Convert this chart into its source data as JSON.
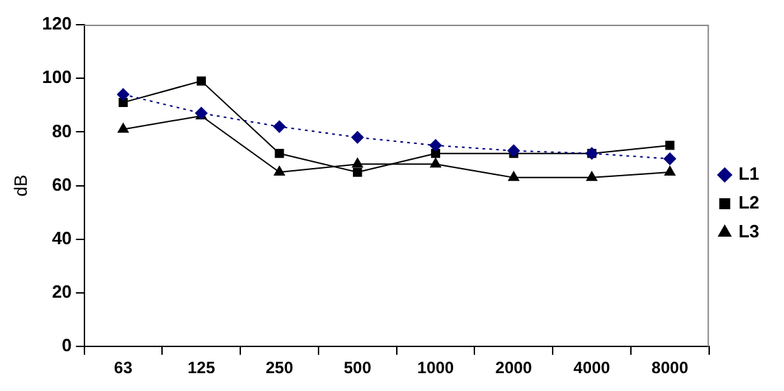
{
  "chart_data": {
    "type": "line",
    "ylabel": "dB",
    "categories": [
      "63",
      "125",
      "250",
      "500",
      "1000",
      "2000",
      "4000",
      "8000"
    ],
    "series": [
      {
        "name": "L1",
        "color": "#000080",
        "marker": "diamond",
        "line_style": "dotted",
        "values": [
          94,
          87,
          82,
          78,
          75,
          73,
          72,
          70
        ]
      },
      {
        "name": "L2",
        "color": "#000000",
        "marker": "square",
        "line_style": "solid",
        "values": [
          91,
          99,
          72,
          65,
          72,
          72,
          72,
          75
        ]
      },
      {
        "name": "L3",
        "color": "#000000",
        "marker": "triangle",
        "line_style": "solid",
        "values": [
          81,
          86,
          65,
          68,
          68,
          63,
          63,
          65
        ]
      }
    ],
    "ylim": [
      0,
      120
    ],
    "yticks": [
      0,
      20,
      40,
      60,
      80,
      100,
      120
    ],
    "grid": false,
    "legend": "right"
  }
}
